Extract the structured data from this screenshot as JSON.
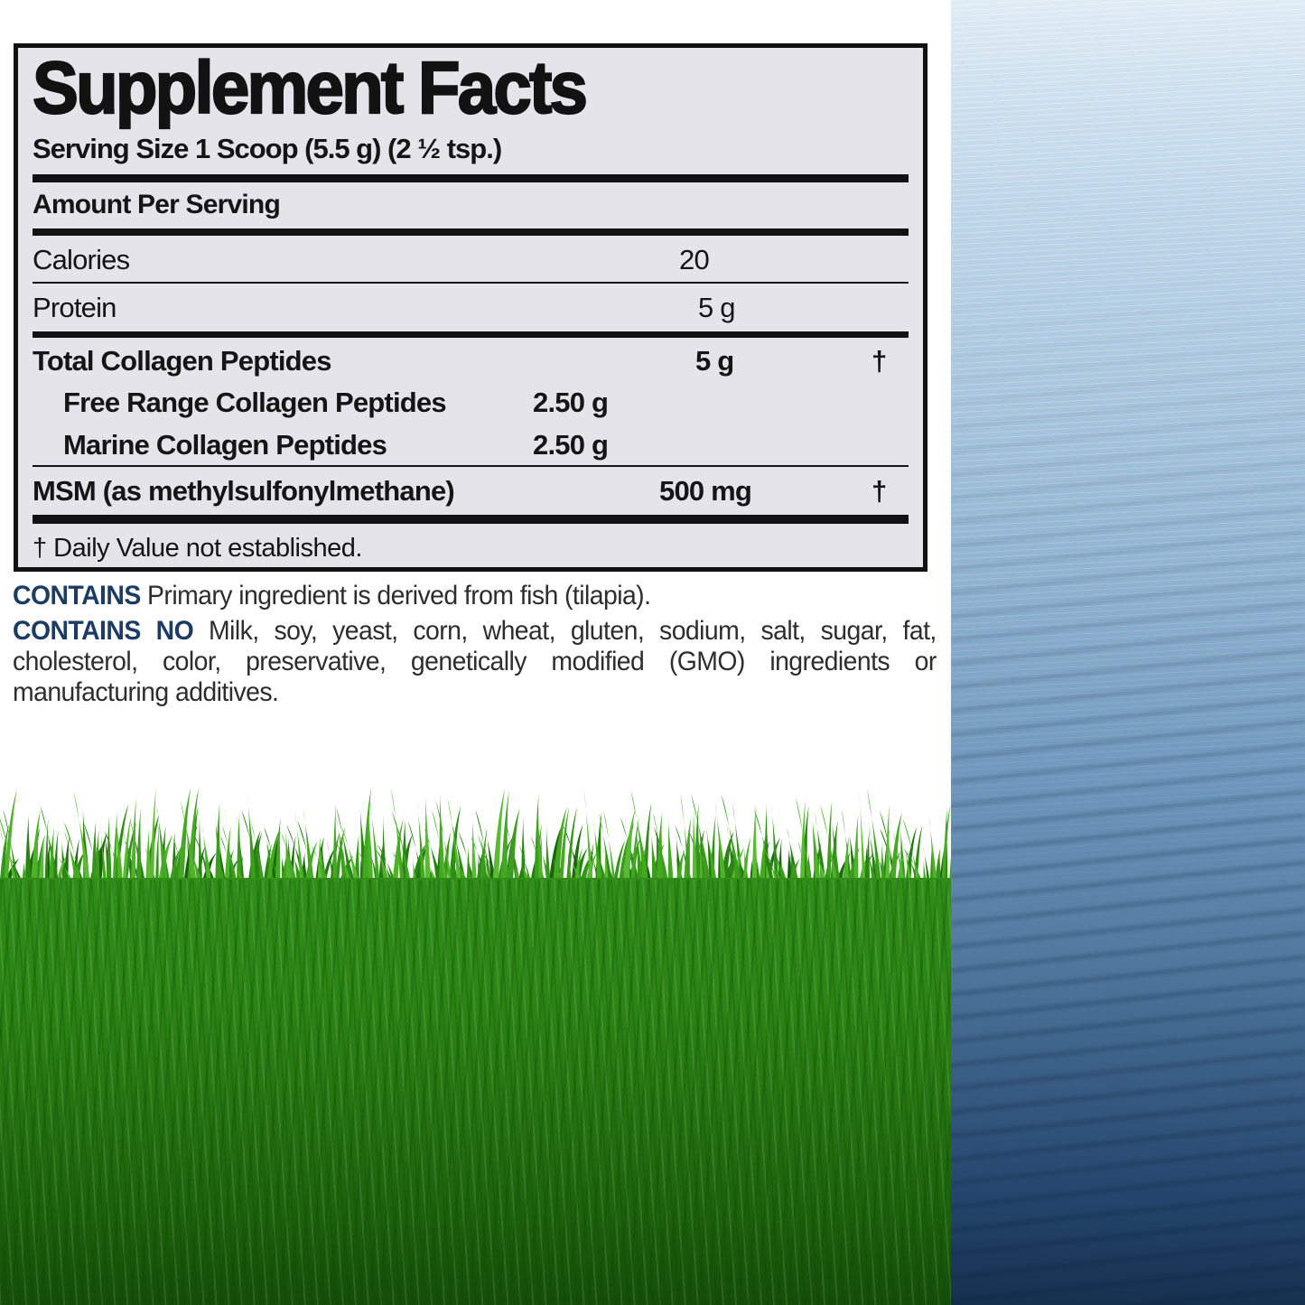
{
  "label": {
    "title": "Supplement Facts",
    "serving_size": "Serving Size 1 Scoop (5.5 g) (2 ½ tsp.)",
    "amount_per_serving": "Amount Per Serving",
    "rows": {
      "calories": {
        "name": "Calories",
        "amount": "20",
        "dv": ""
      },
      "protein": {
        "name": "Protein",
        "amount": "5 g",
        "dv": ""
      },
      "total_collagen": {
        "name": "Total Collagen Peptides",
        "amount": "5 g",
        "dv": "†"
      },
      "free_range": {
        "name": "Free Range Collagen Peptides",
        "amount": "2.50 g",
        "dv": ""
      },
      "marine": {
        "name": "Marine Collagen Peptides",
        "amount": "2.50 g",
        "dv": ""
      },
      "msm": {
        "name": "MSM (as methylsulfonylmethane)",
        "amount": "500 mg",
        "dv": "†"
      }
    },
    "footnote": "† Daily Value not established."
  },
  "contains": {
    "heading1": "CONTAINS",
    "text1": "Primary ingredient is derived from fish (tilapia).",
    "heading2": "CONTAINS NO",
    "text2": "Milk, soy, yeast, corn, wheat, gluten, sodium, salt, sugar, fat, cholesterol, color, preservative, genetically modified (GMO) ingredients or manufacturing additives."
  },
  "colors": {
    "accent_navy": "#1c3c64",
    "label_background": "#e5e4ea",
    "label_border": "#111111",
    "water_top": "#d8e6f2",
    "water_bottom": "#16304f",
    "grass_green": "#2f8f17"
  }
}
